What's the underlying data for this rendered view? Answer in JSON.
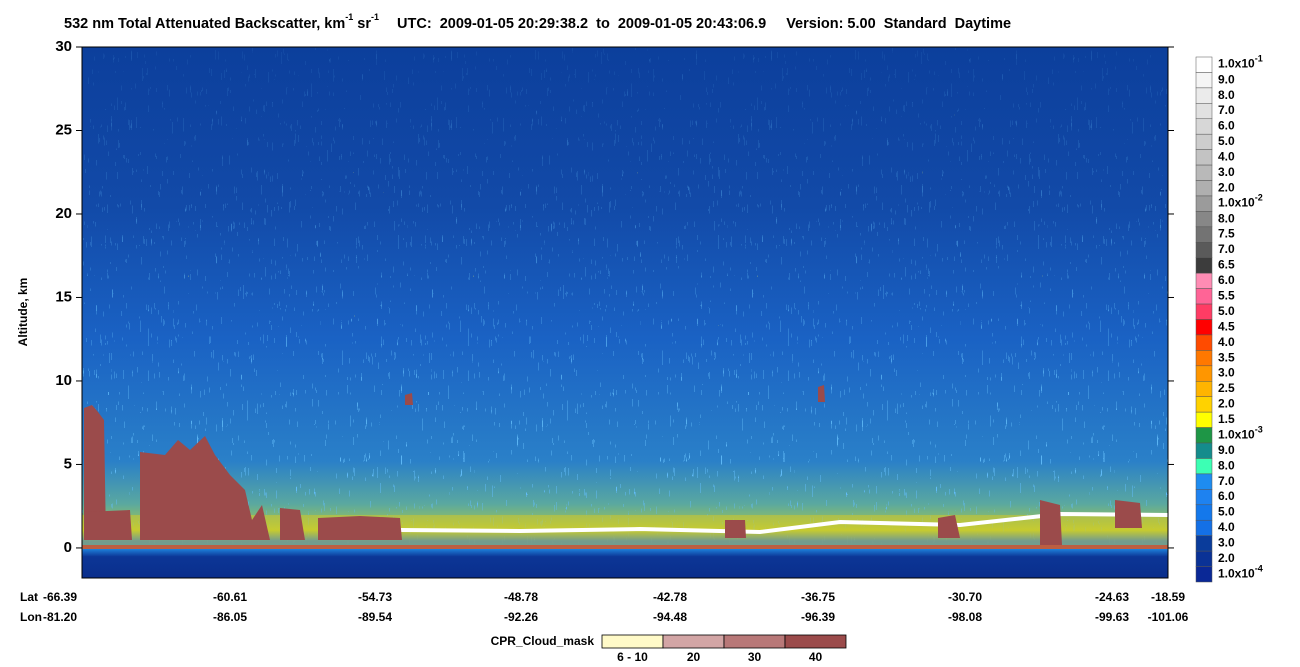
{
  "chart_data": {
    "type": "curtain",
    "title": {
      "main": "532 nm Total Attenuated Backscatter, km",
      "sup1": "-1",
      "unit2": " sr",
      "sup2": "-1",
      "utc": "UTC:  2009-01-05 20:29:38.2  to  2009-01-05 20:43:06.9",
      "version": "Version: 5.00  Standard  Daytime"
    },
    "ylabel": "Altitude, km",
    "ylim": [
      -1.8,
      30
    ],
    "yticks": [
      0,
      5,
      10,
      15,
      20,
      25,
      30
    ],
    "x_rows": [
      "Lat",
      "Lon"
    ],
    "lat": [
      "-66.39",
      "-60.61",
      "-54.73",
      "-48.78",
      "-42.78",
      "-36.75",
      "-30.70",
      "-24.63",
      "-18.59"
    ],
    "lon": [
      "-81.20",
      "-86.05",
      "-89.54",
      "-92.26",
      "-94.48",
      "-96.39",
      "-98.08",
      "-99.63",
      "-101.06"
    ],
    "colorbar": {
      "labels": [
        {
          "text": "1.0x10",
          "sup": "-1"
        },
        "9.0",
        "8.0",
        "7.0",
        "6.0",
        "5.0",
        "4.0",
        "3.0",
        "2.0",
        {
          "text": "1.0x10",
          "sup": "-2"
        },
        "8.0",
        "7.5",
        "7.0",
        "6.5",
        "6.0",
        "5.5",
        "5.0",
        "4.5",
        "4.0",
        "3.5",
        "3.0",
        "2.5",
        "2.0",
        "1.5",
        {
          "text": "1.0x10",
          "sup": "-3"
        },
        "9.0",
        "8.0",
        "7.0",
        "6.0",
        "5.0",
        "4.0",
        "3.0",
        "2.0",
        {
          "text": "1.0x10",
          "sup": "-4"
        }
      ],
      "colors": [
        "#ffffff",
        "#f5f5f5",
        "#ebebeb",
        "#e1e1e1",
        "#d7d7d7",
        "#cdcdcd",
        "#c3c3c3",
        "#b9b9b9",
        "#afafaf",
        "#9b9b9b",
        "#878787",
        "#737373",
        "#5a5a5a",
        "#3c3c3c",
        "#ff8cb4",
        "#ff6496",
        "#ff3c64",
        "#ff0000",
        "#ff4b00",
        "#ff7800",
        "#ff9600",
        "#ffb400",
        "#ffd200",
        "#ffff00",
        "#1e9646",
        "#148c8c",
        "#3cffb4",
        "#1e8cf0",
        "#1e82f0",
        "#1478eb",
        "#1470e6",
        "#0a3c9b",
        "#0a3296",
        "#0a2896"
      ]
    },
    "mask": {
      "label": "CPR_Cloud_mask",
      "categories": [
        "6 - 10",
        "20",
        "30",
        "40"
      ],
      "colors": [
        "#fffac8",
        "#d2a5a5",
        "#b87878",
        "#9b4b4b"
      ]
    }
  }
}
